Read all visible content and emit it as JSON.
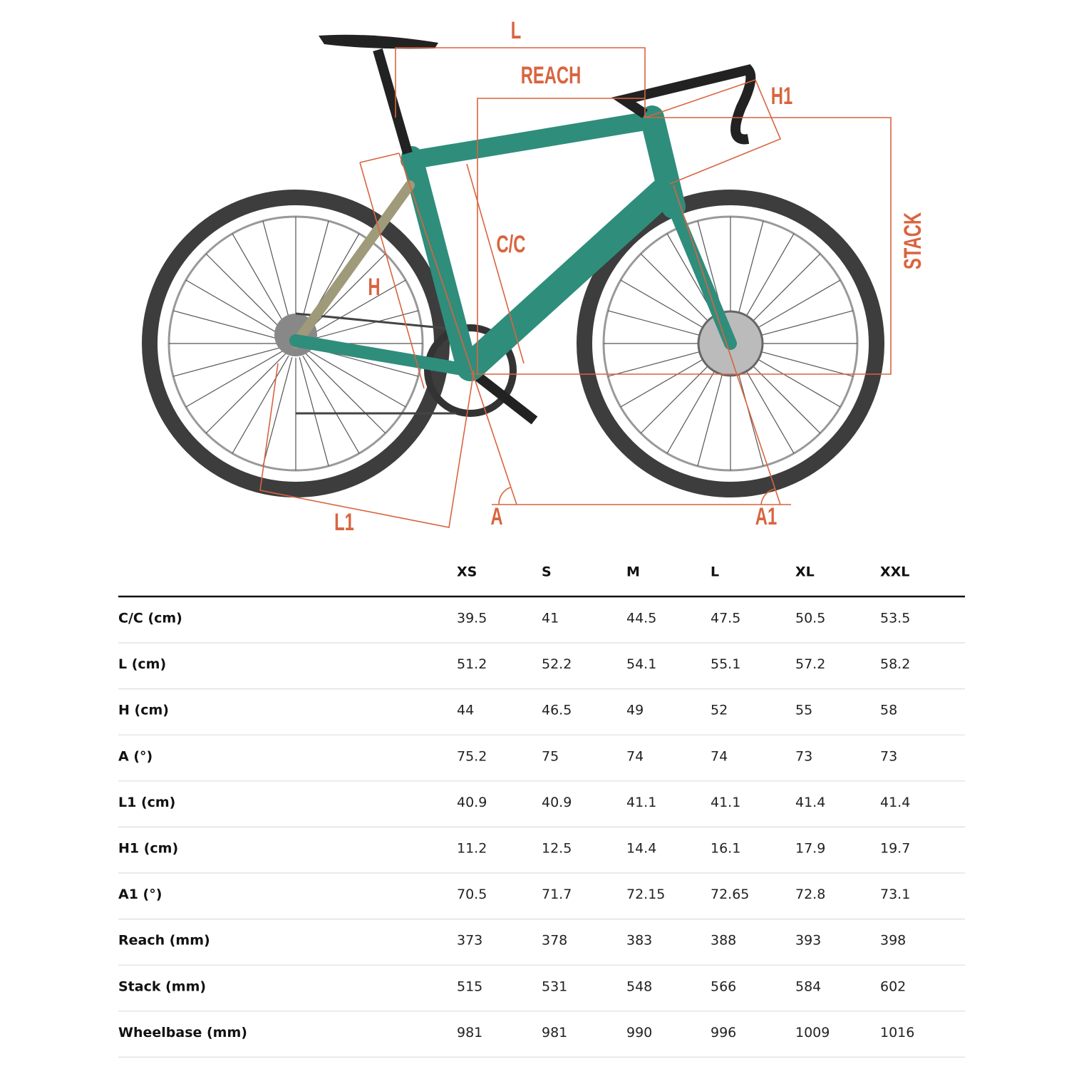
{
  "diagram": {
    "labels": {
      "l": "L",
      "reach": "REACH",
      "h1": "H1",
      "stack": "STACK",
      "cc": "C/C",
      "h": "H",
      "l1": "L1",
      "a": "A",
      "a1": "A1"
    }
  },
  "table": {
    "columns": [
      "XS",
      "S",
      "M",
      "L",
      "XL",
      "XXL"
    ],
    "rows": [
      [
        "C/C (cm)",
        "39.5",
        "41",
        "44.5",
        "47.5",
        "50.5",
        "53.5"
      ],
      [
        "L (cm)",
        "51.2",
        "52.2",
        "54.1",
        "55.1",
        "57.2",
        "58.2"
      ],
      [
        "H (cm)",
        "44",
        "46.5",
        "49",
        "52",
        "55",
        "58"
      ],
      [
        "A (°)",
        "75.2",
        "75",
        "74",
        "74",
        "73",
        "73"
      ],
      [
        "L1 (cm)",
        "40.9",
        "40.9",
        "41.1",
        "41.1",
        "41.4",
        "41.4"
      ],
      [
        "H1 (cm)",
        "11.2",
        "12.5",
        "14.4",
        "16.1",
        "17.9",
        "19.7"
      ],
      [
        "A1 (°)",
        "70.5",
        "71.7",
        "72.15",
        "72.65",
        "72.8",
        "73.1"
      ],
      [
        "Reach (mm)",
        "373",
        "378",
        "383",
        "388",
        "393",
        "398"
      ],
      [
        "Stack (mm)",
        "515",
        "531",
        "548",
        "566",
        "584",
        "602"
      ],
      [
        "Wheelbase (mm)",
        "981",
        "981",
        "990",
        "996",
        "1009",
        "1016"
      ]
    ]
  }
}
